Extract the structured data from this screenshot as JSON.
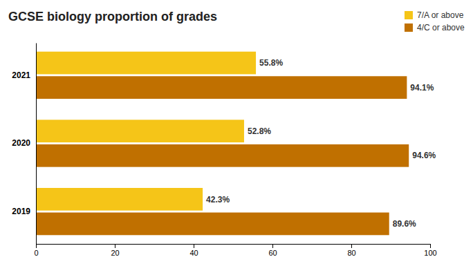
{
  "chart_data": {
    "type": "bar",
    "orientation": "horizontal",
    "title": "GCSE biology proportion of grades",
    "categories": [
      "2021",
      "2020",
      "2019"
    ],
    "series": [
      {
        "name": "7/A or above",
        "color": "#f5c518",
        "values": [
          55.8,
          52.8,
          42.3
        ],
        "value_labels": [
          "55.8%",
          "52.8%",
          "42.3%"
        ]
      },
      {
        "name": "4/C or above",
        "color": "#c07000",
        "values": [
          94.1,
          94.6,
          89.6
        ],
        "value_labels": [
          "94.1%",
          "94.6%",
          "89.6%"
        ]
      }
    ],
    "xlim": [
      0,
      100
    ],
    "xticks": [
      0,
      20,
      40,
      60,
      80,
      100
    ],
    "data_labels": true,
    "legend": "upper right",
    "grid": false
  }
}
